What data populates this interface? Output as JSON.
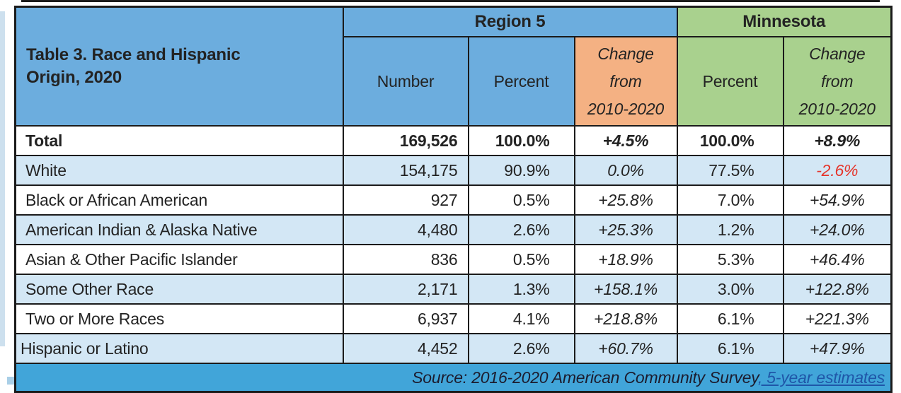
{
  "table": {
    "title": "Table 3. Race and Hispanic Origin, 2020",
    "groups": [
      {
        "label": "Region 5"
      },
      {
        "label": "Minnesota"
      }
    ],
    "subheaders": {
      "number": "Number",
      "region5_percent": "Percent",
      "mn_percent": "Percent",
      "change_lines": [
        "Change",
        "from",
        "2010-2020"
      ]
    },
    "rows": [
      {
        "label": "Total",
        "region5_number": "169,526",
        "region5_percent": "100.0%",
        "region5_change": "+4.5%",
        "mn_percent": "100.0%",
        "mn_change": "+8.9%"
      },
      {
        "label": "White",
        "region5_number": "154,175",
        "region5_percent": "90.9%",
        "region5_change": "0.0%",
        "mn_percent": "77.5%",
        "mn_change": "-2.6%"
      },
      {
        "label": "Black or African American",
        "region5_number": "927",
        "region5_percent": "0.5%",
        "region5_change": "+25.8%",
        "mn_percent": "7.0%",
        "mn_change": "+54.9%"
      },
      {
        "label": "American Indian & Alaska Native",
        "region5_number": "4,480",
        "region5_percent": "2.6%",
        "region5_change": "+25.3%",
        "mn_percent": "1.2%",
        "mn_change": "+24.0%"
      },
      {
        "label": "Asian & Other Pacific Islander",
        "region5_number": "836",
        "region5_percent": "0.5%",
        "region5_change": "+18.9%",
        "mn_percent": "5.3%",
        "mn_change": "+46.4%"
      },
      {
        "label": "Some Other Race",
        "region5_number": "2,171",
        "region5_percent": "1.3%",
        "region5_change": "+158.1%",
        "mn_percent": "3.0%",
        "mn_change": "+122.8%"
      },
      {
        "label": "Two or More Races",
        "region5_number": "6,937",
        "region5_percent": "4.1%",
        "region5_change": "+218.8%",
        "mn_percent": "6.1%",
        "mn_change": "+221.3%"
      },
      {
        "label": "Hispanic or Latino",
        "region5_number": "4,452",
        "region5_percent": "2.6%",
        "region5_change": "+60.7%",
        "mn_percent": "6.1%",
        "mn_change": "+47.9%"
      }
    ],
    "source_text": "Source: 2016-2020 American Community Survey",
    "source_link": ", 5-year estimates"
  },
  "colors": {
    "header_blue": "#6cadde",
    "minnesota_green": "#a9d18e",
    "change_orange": "#f4b183",
    "row_shade_blue": "#d3e7f5",
    "source_bar_blue": "#41a5d9",
    "negative_red": "#e5342a",
    "link_blue": "#1f56a8",
    "border_black": "#1b1b1b"
  },
  "chart_data": {
    "type": "table",
    "title": "Table 3. Race and Hispanic Origin, 2020",
    "column_groups": [
      "Region 5",
      "Region 5",
      "Region 5",
      "Minnesota",
      "Minnesota"
    ],
    "columns": [
      "Number",
      "Percent",
      "Change from 2010-2020",
      "Percent",
      "Change from 2010-2020"
    ],
    "categories": [
      "Total",
      "White",
      "Black or African American",
      "American Indian & Alaska Native",
      "Asian & Other Pacific Islander",
      "Some Other Race",
      "Two or More Races",
      "Hispanic or Latino"
    ],
    "series": [
      {
        "name": "Region 5 Number",
        "values": [
          169526,
          154175,
          927,
          4480,
          836,
          2171,
          6937,
          4452
        ]
      },
      {
        "name": "Region 5 Percent",
        "values": [
          100.0,
          90.9,
          0.5,
          2.6,
          0.5,
          1.3,
          4.1,
          2.6
        ]
      },
      {
        "name": "Region 5 Change from 2010-2020 (%)",
        "values": [
          4.5,
          0.0,
          25.8,
          25.3,
          18.9,
          158.1,
          218.8,
          60.7
        ]
      },
      {
        "name": "Minnesota Percent",
        "values": [
          100.0,
          77.5,
          7.0,
          1.2,
          5.3,
          3.0,
          6.1,
          6.1
        ]
      },
      {
        "name": "Minnesota Change from 2010-2020 (%)",
        "values": [
          8.9,
          -2.6,
          54.9,
          24.0,
          46.4,
          122.8,
          221.3,
          47.9
        ]
      }
    ],
    "annotations": [
      "Source: 2016-2020 American Community Survey, 5-year estimates"
    ]
  }
}
